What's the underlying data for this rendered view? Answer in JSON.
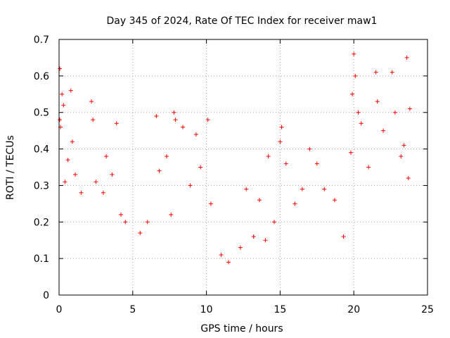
{
  "chart_data": {
    "type": "scatter",
    "title": "Day 345 of 2024, Rate Of TEC Index for receiver maw1",
    "xlabel": "GPS time / hours",
    "ylabel": "ROTI / TECUs",
    "xlim": [
      0,
      25
    ],
    "ylim": [
      0,
      0.7
    ],
    "xticks": [
      0,
      5,
      10,
      15,
      20,
      25
    ],
    "xtick_labels": [
      "0",
      "5",
      "10",
      "15",
      "20",
      "25"
    ],
    "yticks": [
      0,
      0.1,
      0.2,
      0.3,
      0.4,
      0.5,
      0.6,
      0.7
    ],
    "ytick_labels": [
      "0",
      "0.1",
      "0.2",
      "0.3",
      "0.4",
      "0.5",
      "0.6",
      "0.7"
    ],
    "grid": true,
    "marker": "plus",
    "color": "#ff0000",
    "series": [
      {
        "points": [
          [
            0.05,
            0.62
          ],
          [
            0.05,
            0.48
          ],
          [
            0.1,
            0.46
          ],
          [
            0.2,
            0.55
          ],
          [
            0.3,
            0.52
          ],
          [
            0.4,
            0.31
          ],
          [
            0.6,
            0.37
          ],
          [
            0.8,
            0.56
          ],
          [
            0.9,
            0.42
          ],
          [
            1.1,
            0.33
          ],
          [
            1.5,
            0.28
          ],
          [
            2.2,
            0.53
          ],
          [
            2.3,
            0.48
          ],
          [
            2.5,
            0.31
          ],
          [
            3.0,
            0.28
          ],
          [
            3.2,
            0.38
          ],
          [
            3.6,
            0.33
          ],
          [
            3.9,
            0.47
          ],
          [
            4.2,
            0.22
          ],
          [
            4.5,
            0.2
          ],
          [
            5.5,
            0.17
          ],
          [
            6.0,
            0.2
          ],
          [
            6.6,
            0.49
          ],
          [
            6.8,
            0.34
          ],
          [
            7.3,
            0.38
          ],
          [
            7.6,
            0.22
          ],
          [
            7.8,
            0.5
          ],
          [
            7.9,
            0.48
          ],
          [
            8.4,
            0.46
          ],
          [
            8.9,
            0.3
          ],
          [
            9.3,
            0.44
          ],
          [
            9.6,
            0.35
          ],
          [
            10.1,
            0.48
          ],
          [
            10.3,
            0.25
          ],
          [
            11.0,
            0.11
          ],
          [
            11.5,
            0.09
          ],
          [
            12.3,
            0.13
          ],
          [
            12.7,
            0.29
          ],
          [
            13.2,
            0.16
          ],
          [
            13.6,
            0.26
          ],
          [
            14.0,
            0.15
          ],
          [
            14.2,
            0.38
          ],
          [
            14.6,
            0.2
          ],
          [
            15.0,
            0.42
          ],
          [
            15.1,
            0.46
          ],
          [
            15.4,
            0.36
          ],
          [
            16.0,
            0.25
          ],
          [
            16.5,
            0.29
          ],
          [
            17.0,
            0.4
          ],
          [
            17.5,
            0.36
          ],
          [
            18.0,
            0.29
          ],
          [
            18.7,
            0.26
          ],
          [
            19.3,
            0.16
          ],
          [
            19.8,
            0.39
          ],
          [
            19.9,
            0.55
          ],
          [
            20.0,
            0.66
          ],
          [
            20.1,
            0.6
          ],
          [
            20.3,
            0.5
          ],
          [
            20.5,
            0.47
          ],
          [
            21.0,
            0.35
          ],
          [
            21.5,
            0.61
          ],
          [
            21.6,
            0.53
          ],
          [
            22.0,
            0.45
          ],
          [
            22.6,
            0.61
          ],
          [
            22.8,
            0.5
          ],
          [
            23.2,
            0.38
          ],
          [
            23.4,
            0.41
          ],
          [
            23.6,
            0.65
          ],
          [
            23.7,
            0.32
          ],
          [
            23.8,
            0.51
          ]
        ]
      }
    ]
  }
}
